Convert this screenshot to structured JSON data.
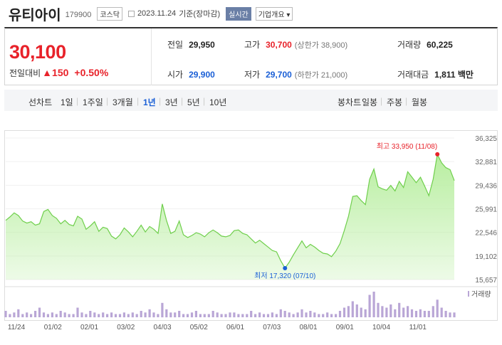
{
  "header": {
    "name": "유티아이",
    "code": "179900",
    "market": "코스닥",
    "date": "2023.11.24",
    "basis": "기준(장마감)",
    "realtime": "실시간",
    "company_info": "기업개요 ▾"
  },
  "quote": {
    "price": "30,100",
    "change_label": "전일대비",
    "change": "▲150",
    "change_pct": "+0.50%",
    "prev_label": "전일",
    "prev": "29,950",
    "high_label": "고가",
    "high": "30,700",
    "upper_limit": "(상한가 38,900)",
    "volume_label": "거래량",
    "volume": "60,225",
    "open_label": "시가",
    "open": "29,900",
    "low_label": "저가",
    "low": "29,700",
    "lower_limit": "(하한가 21,000)",
    "amount_label": "거래대금",
    "amount": "1,811 백만"
  },
  "periods": {
    "line_chart": "선차트",
    "items": [
      "1일",
      "1주일",
      "3개월",
      "1년",
      "3년",
      "5년",
      "10년"
    ],
    "active": "1년",
    "candle_chart": "봉차트",
    "candle_items": [
      "일봉",
      "주봉",
      "월봉"
    ]
  },
  "colors": {
    "up": "#e8222a",
    "down": "#1a5fd6",
    "area": "#b8eea0",
    "line": "#6fcf4c",
    "volume": "#b9a6d6"
  },
  "chart_data": {
    "type": "area",
    "y_ticks": [
      "36,325",
      "32,881",
      "29,436",
      "25,991",
      "22,546",
      "19,102",
      "15,657"
    ],
    "ylim": [
      15657,
      36325
    ],
    "x_ticks": [
      "11/24",
      "01/02",
      "02/01",
      "03/02",
      "04/03",
      "05/02",
      "06/01",
      "07/03",
      "08/01",
      "09/01",
      "10/04",
      "11/01"
    ],
    "high_label": "최고 33,950 (11/08)",
    "low_label": "최저 17,320 (07/10)",
    "volume_legend": "거래량",
    "series": [
      {
        "values": [
          24300,
          24800,
          25400,
          25000,
          24200,
          23900,
          24100,
          23600,
          23800,
          25600,
          25900,
          25000,
          24600,
          23800,
          24300,
          23700,
          23500,
          24900,
          24500,
          23000,
          23500,
          24100,
          22700,
          23300,
          23100,
          22000,
          21600,
          22200,
          23200,
          22600,
          21900,
          22700,
          23600,
          22600,
          23400,
          23000,
          22400,
          26700,
          24300,
          22400,
          22700,
          24200,
          22200,
          21800,
          22100,
          22500,
          22300,
          21900,
          22500,
          22900,
          22500,
          22000,
          21900,
          22100,
          22800,
          22900,
          22400,
          22200,
          21600,
          21000,
          21400,
          20900,
          20400,
          19900,
          19700,
          18400,
          17320,
          18200,
          19300,
          20300,
          21300,
          20300,
          20800,
          20400,
          19900,
          19500,
          19400,
          19000,
          19800,
          20900,
          22800,
          24900,
          27800,
          27900,
          27200,
          26600,
          30300,
          31800,
          29200,
          28900,
          28700,
          29400,
          28600,
          30000,
          29100,
          31400,
          30600,
          29800,
          30600,
          29300,
          27900,
          30300,
          33950,
          32700,
          32000,
          31700,
          30100
        ]
      },
      {
        "name": "거래량",
        "values": [
          4,
          2,
          3,
          5,
          2,
          3,
          2,
          4,
          6,
          3,
          2,
          3,
          2,
          4,
          3,
          2,
          2,
          6,
          3,
          2,
          4,
          3,
          2,
          3,
          2,
          3,
          2,
          2,
          3,
          2,
          3,
          2,
          4,
          3,
          5,
          3,
          2,
          9,
          5,
          3,
          3,
          4,
          2,
          2,
          3,
          4,
          2,
          2,
          2,
          4,
          3,
          2,
          2,
          3,
          3,
          2,
          2,
          2,
          4,
          2,
          3,
          2,
          2,
          3,
          2,
          5,
          4,
          3,
          2,
          3,
          5,
          3,
          4,
          3,
          2,
          2,
          3,
          2,
          2,
          4,
          6,
          7,
          10,
          8,
          6,
          5,
          14,
          16,
          9,
          7,
          6,
          8,
          5,
          9,
          6,
          7,
          5,
          4,
          5,
          4,
          4,
          7,
          11,
          6,
          4,
          3,
          3
        ]
      }
    ]
  }
}
